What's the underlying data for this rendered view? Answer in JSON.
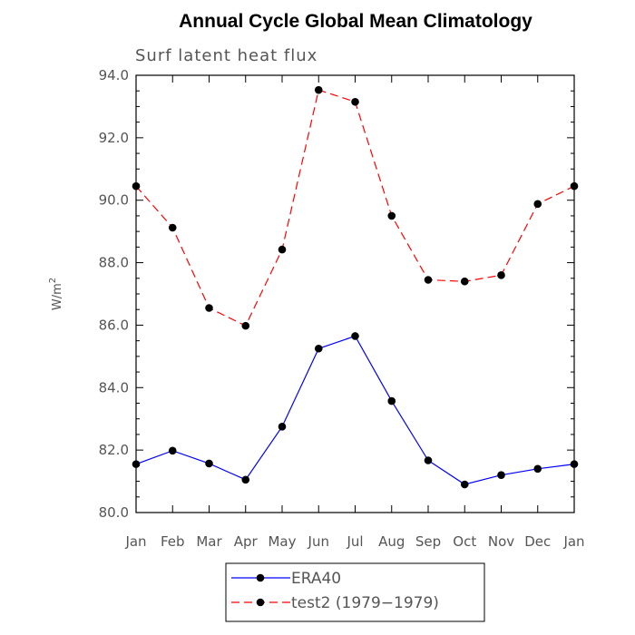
{
  "chart_data": {
    "type": "line",
    "title": "Annual Cycle Global Mean Climatology",
    "subtitle": "Surf latent heat flux",
    "xlabel": "",
    "ylabel_base": "W/m",
    "ylabel_sup": "2",
    "categories": [
      "Jan",
      "Feb",
      "Mar",
      "Apr",
      "May",
      "Jun",
      "Jul",
      "Aug",
      "Sep",
      "Oct",
      "Nov",
      "Dec",
      "Jan"
    ],
    "ylim": [
      80.0,
      94.0
    ],
    "yticks": [
      80.0,
      82.0,
      84.0,
      86.0,
      88.0,
      90.0,
      92.0,
      94.0
    ],
    "ytick_labels": [
      "80.0",
      "82.0",
      "84.0",
      "86.0",
      "88.0",
      "90.0",
      "92.0",
      "94.0"
    ],
    "legend_position": "bottom-center",
    "series": [
      {
        "name": "ERA40",
        "color": "#0000ff",
        "dashed": false,
        "values": [
          81.55,
          81.98,
          81.57,
          81.05,
          82.75,
          85.25,
          85.65,
          83.57,
          81.67,
          80.9,
          81.2,
          81.4,
          81.55
        ]
      },
      {
        "name": "test2 (1979−1979)",
        "color": "#ff0000",
        "dashed": true,
        "values": [
          90.45,
          89.12,
          86.55,
          85.98,
          88.42,
          93.53,
          93.15,
          89.5,
          87.45,
          87.4,
          87.6,
          89.88,
          90.45
        ]
      }
    ]
  }
}
